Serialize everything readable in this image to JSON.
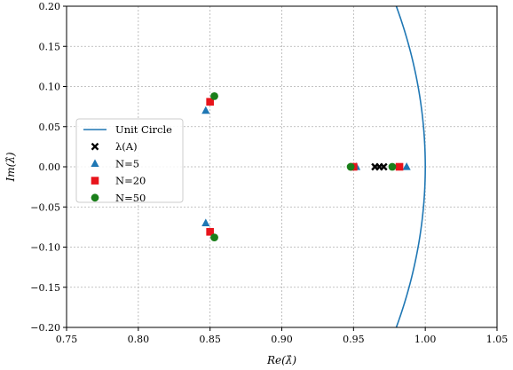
{
  "chart_data": {
    "type": "scatter",
    "xlabel": "Re(λ̂)",
    "ylabel": "Im(λ̂)",
    "xlim": [
      0.75,
      1.05
    ],
    "ylim": [
      -0.2,
      0.2
    ],
    "grid": true,
    "legend_position": "center-left",
    "xticks": [
      "0.75",
      "0.80",
      "0.85",
      "0.90",
      "0.95",
      "1.00",
      "1.05"
    ],
    "yticks": [
      "−0.20",
      "−0.15",
      "−0.10",
      "−0.05",
      "0.00",
      "0.05",
      "0.10",
      "0.15",
      "0.20"
    ],
    "curve": {
      "name": "Unit Circle",
      "color": "#1f77b4"
    },
    "series": [
      {
        "name": "λ(A)",
        "marker": "x",
        "color": "#000000",
        "points": [
          [
            0.965,
            0.0
          ],
          [
            0.968,
            0.0
          ],
          [
            0.971,
            0.0
          ]
        ]
      },
      {
        "name": "N=5",
        "marker": "triangle",
        "color": "#1f77b4",
        "points": [
          [
            0.847,
            0.07
          ],
          [
            0.847,
            -0.07
          ],
          [
            0.952,
            0.0
          ],
          [
            0.987,
            0.0
          ]
        ]
      },
      {
        "name": "N=20",
        "marker": "square",
        "color": "#e8141b",
        "points": [
          [
            0.85,
            0.081
          ],
          [
            0.85,
            -0.081
          ],
          [
            0.95,
            0.0
          ],
          [
            0.982,
            0.0
          ]
        ]
      },
      {
        "name": "N=50",
        "marker": "circle",
        "color": "#1a7f1a",
        "points": [
          [
            0.853,
            0.088
          ],
          [
            0.853,
            -0.088
          ],
          [
            0.948,
            0.0
          ],
          [
            0.977,
            0.0
          ]
        ]
      }
    ]
  }
}
